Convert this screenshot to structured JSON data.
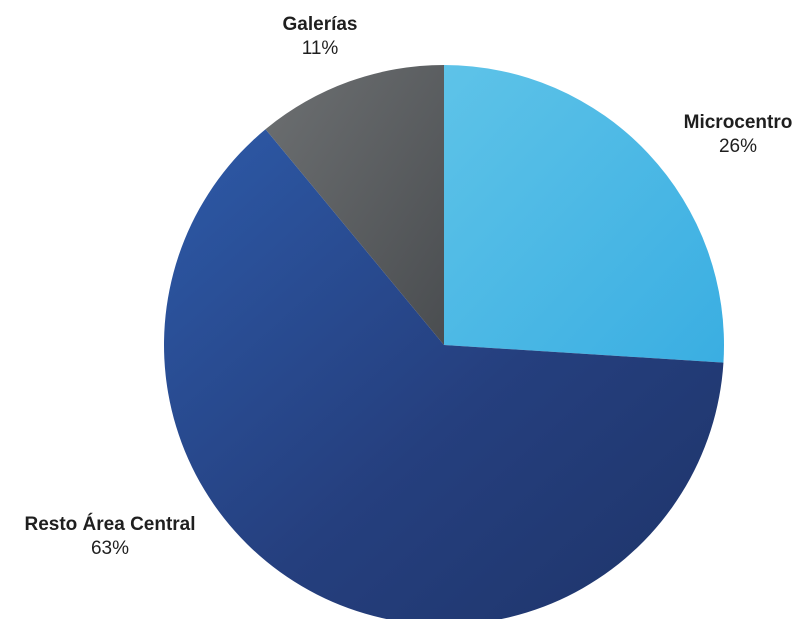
{
  "chart_data": {
    "type": "pie",
    "title": "",
    "slices": [
      {
        "label": "Microcentro",
        "value": 26,
        "value_label": "26%",
        "color": "#4bb4e4"
      },
      {
        "label": "Resto Área Central",
        "value": 63,
        "value_label": "63%",
        "color": "#223a74"
      },
      {
        "label": "Galerías",
        "value": 11,
        "value_label": "11%",
        "color": "#5b5e60"
      }
    ],
    "start_angle_deg": 0,
    "direction": "clockwise",
    "legend": "none"
  }
}
